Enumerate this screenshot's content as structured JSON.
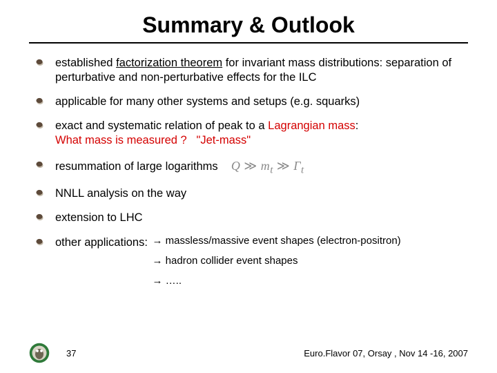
{
  "title": "Summary & Outlook",
  "bullets": [
    {
      "text_html": "established <span class=\"underline\">factorization theorem</span> for invariant mass distributions: separation of perturbative and non-perturbative effects for the ILC"
    },
    {
      "text_html": "applicable for many other systems and setups (e.g. squarks)"
    },
    {
      "text_html": "exact and systematic relation of peak to a <span class=\"red\">Lagrangian mass</span>:<br><span class=\"red\">What mass is measured ?&nbsp;&nbsp;&nbsp;\"Jet-mass\"</span>"
    },
    {
      "text_html": "resummation of large logarithms&nbsp;&nbsp;<span class=\"formula\">Q <span class=\"sym\">≫</span> m<sub>t</sub> <span class=\"sym\">≫</span> Γ<sub>t</sub></span>"
    },
    {
      "text_html": "NNLL analysis on the way"
    },
    {
      "text_html": "extension to LHC"
    },
    {
      "text_html": "other applications:"
    }
  ],
  "sub_items": [
    "→ massless/massive event shapes (electron-positron)",
    "→ hadron collider event shapes",
    "→ ….."
  ],
  "footer": {
    "page": "37",
    "venue": "Euro.Flavor 07, Orsay , Nov 14 -16, 2007"
  },
  "colors": {
    "bullet_fill": "#5d4a3a",
    "bullet_shadow": "#c2b8a8",
    "logo_ring": "#2f7a3a",
    "logo_inner": "#d9d4c6",
    "logo_owl": "#6d6652"
  }
}
